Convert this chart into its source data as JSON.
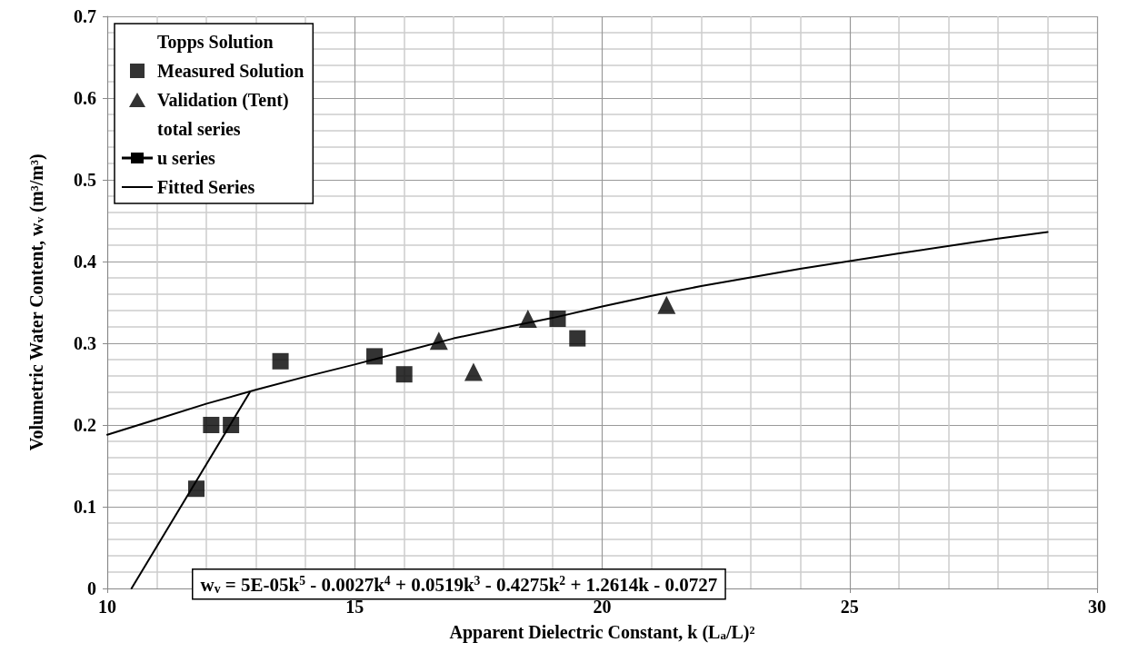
{
  "chart_data": {
    "type": "scatter",
    "xlabel": "Apparent Dielectric Constant, k (L$_{a}$/L)²",
    "ylabel": "Volumetric Water Content, w$_{v}$ (m³/m³)",
    "xlim": [
      10,
      30
    ],
    "xticks": [
      10,
      15,
      20,
      25,
      30
    ],
    "ylim": [
      0,
      0.7
    ],
    "yticks": [
      0,
      0.1,
      0.2,
      0.3,
      0.4,
      0.5,
      0.6,
      0.7
    ],
    "grid": true,
    "legend": "top left",
    "series": [
      {
        "name": "Topps Solution",
        "marker": "none"
      },
      {
        "name": "Measured Solution",
        "marker": "square",
        "color": "#000000",
        "x": [
          11.8,
          12.1,
          12.5,
          13.5,
          15.4,
          16.0,
          19.1,
          19.5
        ],
        "values": [
          0.122,
          0.2,
          0.2,
          0.278,
          0.284,
          0.262,
          0.33,
          0.306
        ]
      },
      {
        "name": "Validation (Tent)",
        "marker": "triangle",
        "color": "#000000",
        "x": [
          16.7,
          17.4,
          18.5,
          21.3
        ],
        "values": [
          0.303,
          0.265,
          0.33,
          0.347
        ]
      },
      {
        "name": "total series",
        "marker": "none"
      },
      {
        "name": "u series",
        "type": "line",
        "marker": "square",
        "color": "#000000"
      },
      {
        "name": "Fitted Series",
        "type": "line",
        "marker": "none",
        "color": "#000000",
        "x": [
          10,
          11,
          12,
          13,
          14,
          15,
          16,
          17,
          18,
          19,
          20,
          21,
          22,
          24,
          26,
          28,
          29
        ],
        "values": [
          0.188,
          0.207,
          0.226,
          0.243,
          0.259,
          0.274,
          0.29,
          0.306,
          0.319,
          0.331,
          0.345,
          0.358,
          0.37,
          0.391,
          0.41,
          0.428,
          0.436
        ]
      },
      {
        "type": "line",
        "marker": "none",
        "color": "#000000",
        "x": [
          10.49,
          12.88
        ],
        "values": [
          0,
          0.24
        ]
      }
    ],
    "annotations": [
      "w$_{v}$ = 5E-05k$^{5}$ - 0.0027k$^{4}$ + 0.0519k$^{3}$ - 0.4275k$^{2}$ + 1.2614k - 0.0727"
    ]
  }
}
